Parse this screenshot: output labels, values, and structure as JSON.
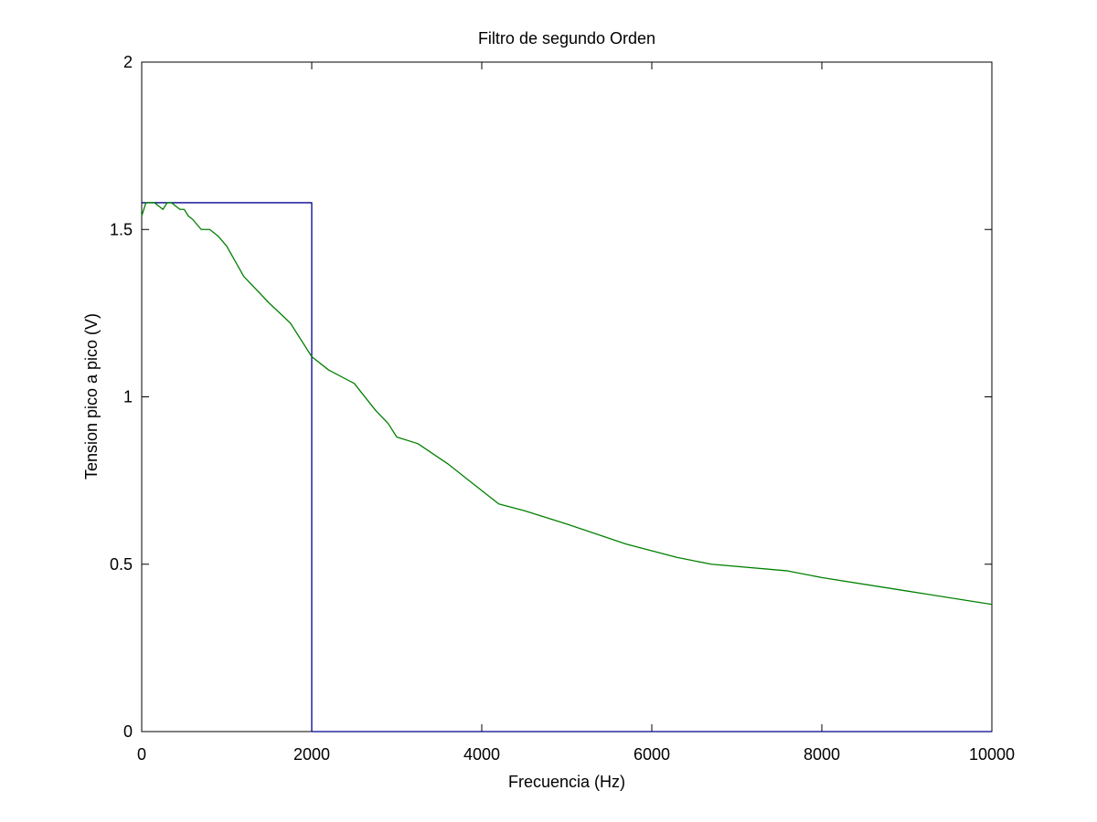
{
  "chart_data": {
    "type": "line",
    "title": "Filtro de segundo Orden",
    "xlabel": "Frecuencia (Hz)",
    "ylabel": "Tension pico a pico (V)",
    "xlim": [
      0,
      10000
    ],
    "ylim": [
      0,
      2
    ],
    "xticks": [
      "0",
      "2000",
      "4000",
      "6000",
      "8000",
      "10000"
    ],
    "yticks": [
      "0",
      "0.5",
      "1",
      "1.5",
      "2"
    ],
    "grid": false,
    "legend": "none",
    "series": [
      {
        "color": "#00008f",
        "x": [
          0,
          0,
          2000,
          2000,
          10000
        ],
        "y": [
          1.58,
          1.58,
          1.58,
          0,
          0
        ]
      },
      {
        "color": "#008000",
        "x": [
          0,
          50,
          100,
          150,
          200,
          250,
          300,
          350,
          400,
          450,
          500,
          550,
          600,
          700,
          800,
          900,
          1000,
          1200,
          1500,
          1750,
          2000,
          2200,
          2500,
          2750,
          2900,
          3000,
          3250,
          3600,
          4000,
          4200,
          4500,
          5000,
          5700,
          6300,
          6700,
          7600,
          8000,
          9000,
          10000
        ],
        "y": [
          1.54,
          1.58,
          1.58,
          1.58,
          1.57,
          1.56,
          1.58,
          1.58,
          1.57,
          1.56,
          1.56,
          1.54,
          1.53,
          1.5,
          1.5,
          1.48,
          1.45,
          1.36,
          1.28,
          1.22,
          1.12,
          1.08,
          1.04,
          0.96,
          0.92,
          0.88,
          0.86,
          0.8,
          0.72,
          0.68,
          0.66,
          0.62,
          0.56,
          0.52,
          0.5,
          0.48,
          0.46,
          0.42,
          0.38
        ]
      }
    ]
  }
}
